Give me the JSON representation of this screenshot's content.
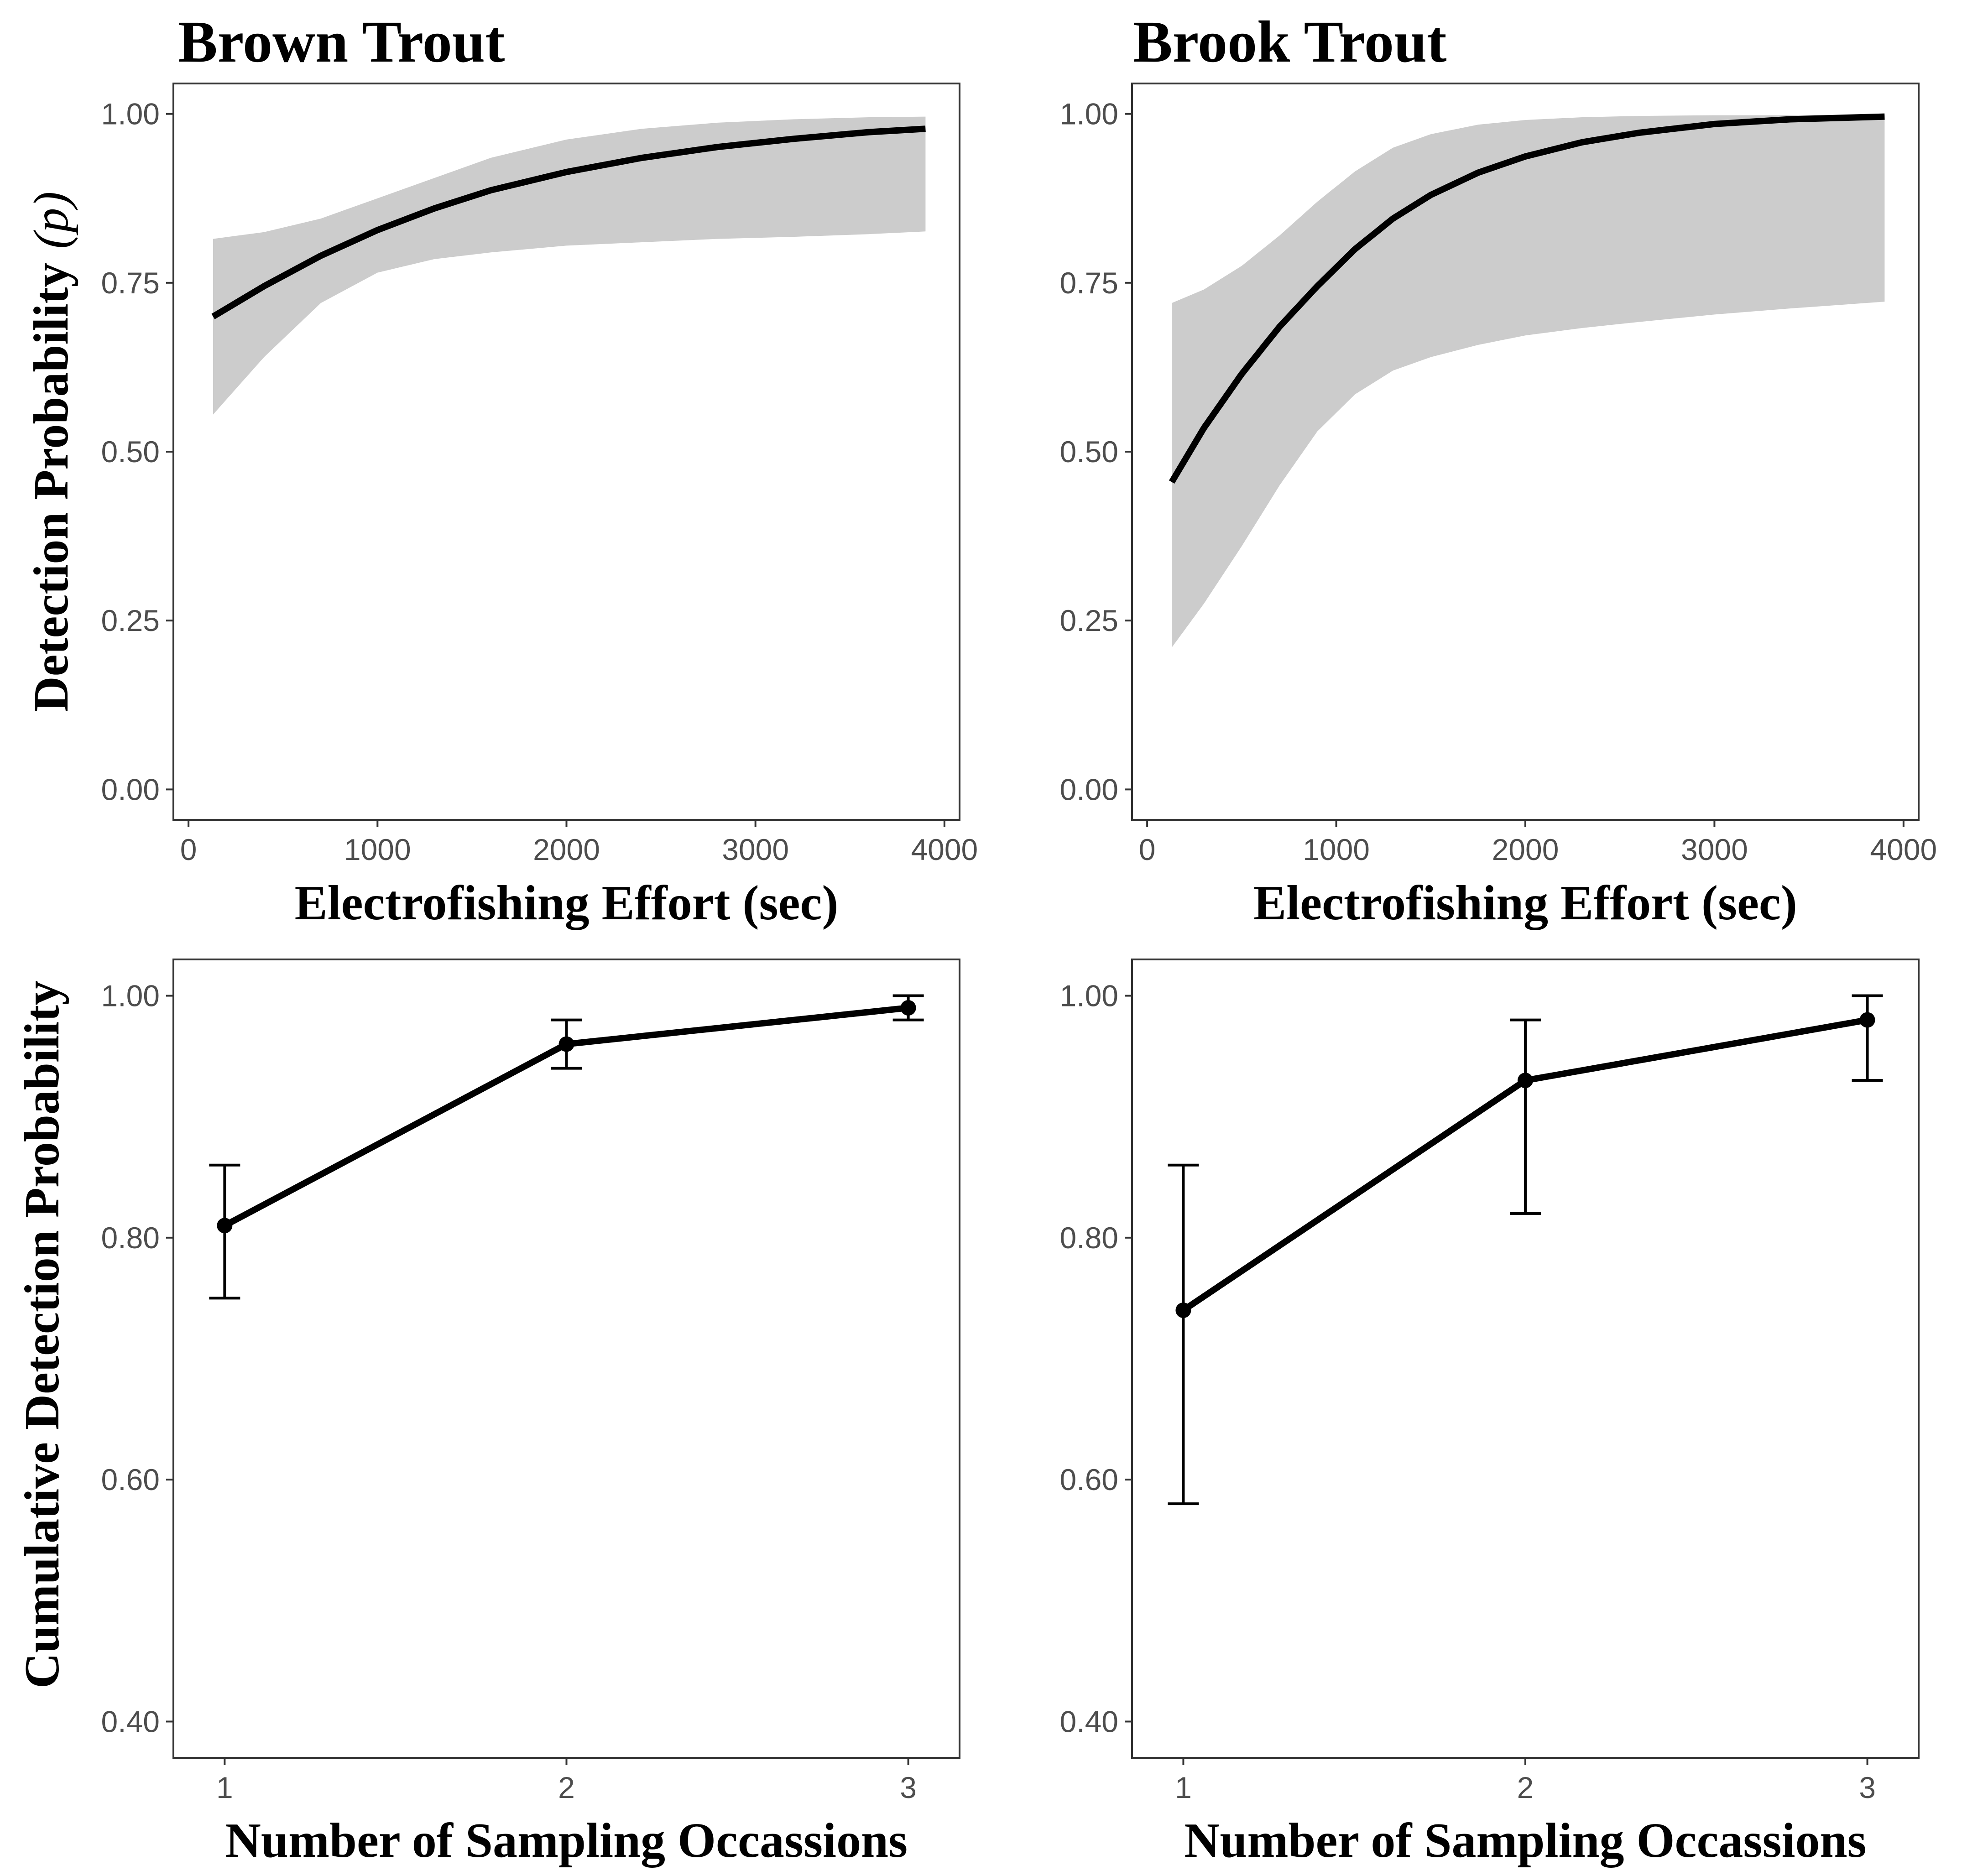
{
  "chart_data": [
    {
      "type": "line",
      "title": "Brown Trout",
      "xlabel": "Electrofishing Effort (sec)",
      "ylabel": "Detection Probability",
      "ylabel_symbol": "(p)",
      "xlim": [
        -80,
        4080
      ],
      "ylim": [
        -0.045,
        1.045
      ],
      "xticks": [
        0,
        1000,
        2000,
        3000,
        4000
      ],
      "yticks": [
        0.0,
        0.25,
        0.5,
        0.75,
        1.0
      ],
      "xtick_labels": [
        "0",
        "1000",
        "2000",
        "3000",
        "4000"
      ],
      "ytick_labels": [
        "0.00",
        "0.25",
        "0.50",
        "0.75",
        "1.00"
      ],
      "grid": false,
      "ribbon": true,
      "x": [
        130,
        400,
        700,
        1000,
        1300,
        1600,
        2000,
        2400,
        2800,
        3200,
        3600,
        3900
      ],
      "y": [
        0.7,
        0.745,
        0.79,
        0.828,
        0.86,
        0.887,
        0.914,
        0.935,
        0.951,
        0.963,
        0.973,
        0.978
      ],
      "lower": [
        0.555,
        0.64,
        0.72,
        0.765,
        0.785,
        0.795,
        0.805,
        0.81,
        0.815,
        0.818,
        0.822,
        0.826
      ],
      "upper": [
        0.815,
        0.825,
        0.845,
        0.875,
        0.905,
        0.935,
        0.962,
        0.978,
        0.987,
        0.992,
        0.995,
        0.996
      ]
    },
    {
      "type": "line",
      "title": "Brook Trout",
      "xlabel": "Electrofishing Effort (sec)",
      "ylabel": "",
      "xlim": [
        -80,
        4080
      ],
      "ylim": [
        -0.045,
        1.045
      ],
      "xticks": [
        0,
        1000,
        2000,
        3000,
        4000
      ],
      "yticks": [
        0.0,
        0.25,
        0.5,
        0.75,
        1.0
      ],
      "xtick_labels": [
        "0",
        "1000",
        "2000",
        "3000",
        "4000"
      ],
      "ytick_labels": [
        "0.00",
        "0.25",
        "0.50",
        "0.75",
        "1.00"
      ],
      "grid": false,
      "ribbon": true,
      "x": [
        130,
        300,
        500,
        700,
        900,
        1100,
        1300,
        1500,
        1750,
        2000,
        2300,
        2600,
        3000,
        3400,
        3900
      ],
      "y": [
        0.455,
        0.535,
        0.615,
        0.685,
        0.745,
        0.8,
        0.845,
        0.88,
        0.913,
        0.937,
        0.958,
        0.972,
        0.985,
        0.992,
        0.996
      ],
      "lower": [
        0.21,
        0.275,
        0.36,
        0.45,
        0.53,
        0.585,
        0.62,
        0.64,
        0.658,
        0.672,
        0.683,
        0.692,
        0.703,
        0.712,
        0.722
      ],
      "upper": [
        0.72,
        0.74,
        0.775,
        0.82,
        0.87,
        0.915,
        0.95,
        0.97,
        0.984,
        0.991,
        0.995,
        0.997,
        0.998,
        0.998,
        0.998
      ]
    },
    {
      "type": "line",
      "title": "",
      "xlabel": "Number of Sampling Occassions",
      "ylabel": "Cumulative Detection Probability",
      "xlim": [
        0.85,
        3.15
      ],
      "ylim": [
        0.37,
        1.03
      ],
      "xticks": [
        1,
        2,
        3
      ],
      "yticks": [
        0.4,
        0.6,
        0.8,
        1.0
      ],
      "xtick_labels": [
        "1",
        "2",
        "3"
      ],
      "ytick_labels": [
        "0.40",
        "0.60",
        "0.80",
        "1.00"
      ],
      "grid": false,
      "markers": true,
      "x": [
        1,
        2,
        3
      ],
      "y": [
        0.81,
        0.96,
        0.99
      ],
      "lower": [
        0.75,
        0.94,
        0.98
      ],
      "upper": [
        0.86,
        0.98,
        1.0
      ]
    },
    {
      "type": "line",
      "title": "",
      "xlabel": "Number of Sampling Occassions",
      "ylabel": "",
      "xlim": [
        0.85,
        3.15
      ],
      "ylim": [
        0.37,
        1.03
      ],
      "xticks": [
        1,
        2,
        3
      ],
      "yticks": [
        0.4,
        0.6,
        0.8,
        1.0
      ],
      "xtick_labels": [
        "1",
        "2",
        "3"
      ],
      "ytick_labels": [
        "0.40",
        "0.60",
        "0.80",
        "1.00"
      ],
      "grid": false,
      "markers": true,
      "x": [
        1,
        2,
        3
      ],
      "y": [
        0.74,
        0.93,
        0.98
      ],
      "lower": [
        0.58,
        0.82,
        0.93
      ],
      "upper": [
        0.86,
        0.98,
        1.0
      ]
    }
  ]
}
